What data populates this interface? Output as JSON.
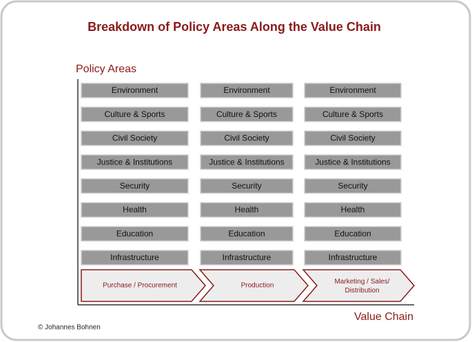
{
  "title": "Breakdown of Policy Areas Along the Value Chain",
  "y_axis_label": "Policy Areas",
  "x_axis_label": "Value Chain",
  "copyright": "© Johannes Bohnen",
  "columns": [
    {
      "stage": "Purchase / Procurement",
      "areas": [
        "Environment",
        "Culture & Sports",
        "Civil Society",
        "Justice & Institutions",
        "Security",
        "Health",
        "Education",
        "Infrastructure"
      ]
    },
    {
      "stage": "Production",
      "areas": [
        "Environment",
        "Culture & Sports",
        "Civil Society",
        "Justice & Institutions",
        "Security",
        "Health",
        "Education",
        "Infrastructure"
      ]
    },
    {
      "stage": "Marketing / Sales/ Distribution",
      "areas": [
        "Environment",
        "Culture & Sports",
        "Civil Society",
        "Justice & Institutions",
        "Security",
        "Health",
        "Education",
        "Infrastructure"
      ]
    }
  ]
}
